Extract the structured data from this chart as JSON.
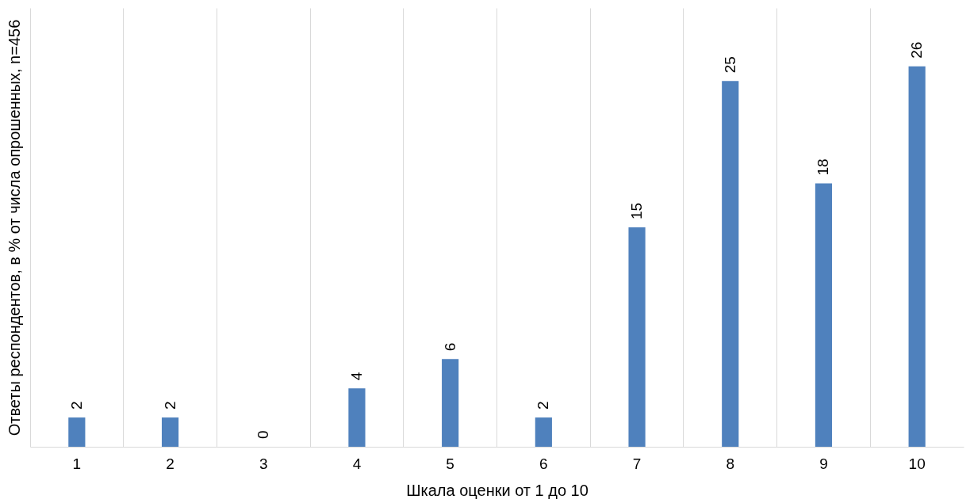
{
  "chart_data": {
    "type": "bar",
    "xlabel": "Шкала оценки от 1 до 10",
    "ylabel": "Ответы респондентов, в % от числа опрошенных, n=456",
    "categories": [
      "1",
      "2",
      "3",
      "4",
      "5",
      "6",
      "7",
      "8",
      "9",
      "10"
    ],
    "values": [
      2,
      2,
      0,
      4,
      6,
      2,
      15,
      25,
      18,
      26
    ],
    "color": "#4f81bd",
    "ylim": [
      0,
      30
    ],
    "data_labels": true,
    "grid": "x"
  }
}
